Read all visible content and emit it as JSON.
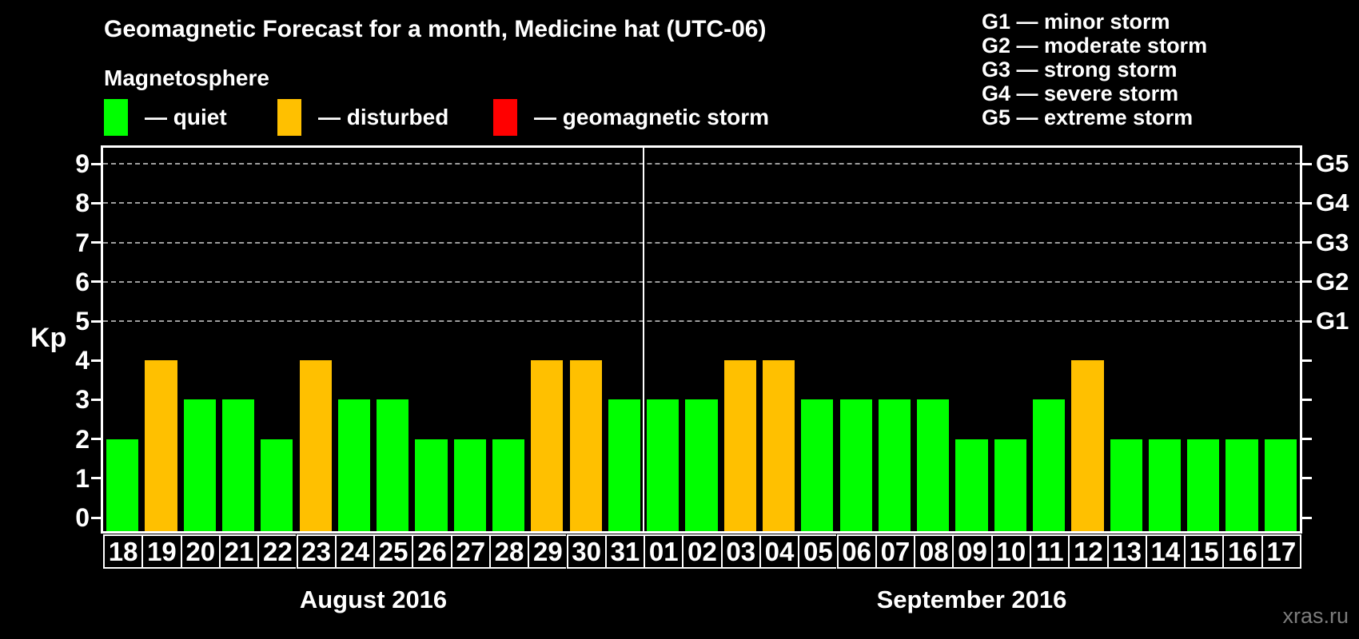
{
  "title": "Geomagnetic Forecast for a month, Medicine hat (UTC-06)",
  "subtitle": "Magnetosphere",
  "legend": {
    "items": [
      {
        "status": "quiet",
        "label": "— quiet",
        "color": "#00FF00"
      },
      {
        "status": "disturbed",
        "label": "— disturbed",
        "color": "#FFC000"
      },
      {
        "status": "storm",
        "label": "— geomagnetic storm",
        "color": "#FF0000"
      }
    ]
  },
  "g_scale_legend": {
    "lines": [
      "G1 — minor storm",
      "G2 — moderate storm",
      "G3 — strong storm",
      "G4 — severe storm",
      "G5 — extreme storm"
    ]
  },
  "watermark": "xras.ru",
  "chart_data": {
    "type": "bar",
    "title": "Geomagnetic Forecast for a month, Medicine hat (UTC-06)",
    "ylabel": "Kp",
    "ylim": [
      0,
      9
    ],
    "y_ticks": [
      0,
      1,
      2,
      3,
      4,
      5,
      6,
      7,
      8,
      9
    ],
    "grid_levels": [
      5,
      6,
      7,
      8,
      9
    ],
    "grid_style": "dashed horizontal gridlines at Kp 5-9",
    "legend_position": "top-left",
    "right_axis_labels": [
      {
        "kp": 5,
        "text": "G1"
      },
      {
        "kp": 6,
        "text": "G2"
      },
      {
        "kp": 7,
        "text": "G3"
      },
      {
        "kp": 8,
        "text": "G4"
      },
      {
        "kp": 9,
        "text": "G5"
      }
    ],
    "status_colors": {
      "quiet": "#00FF00",
      "disturbed": "#FFC000",
      "storm": "#FF0000"
    },
    "months": [
      {
        "label": "August 2016",
        "days": [
          {
            "day": "18",
            "kp": 2,
            "status": "quiet"
          },
          {
            "day": "19",
            "kp": 4,
            "status": "disturbed"
          },
          {
            "day": "20",
            "kp": 3,
            "status": "quiet"
          },
          {
            "day": "21",
            "kp": 3,
            "status": "quiet"
          },
          {
            "day": "22",
            "kp": 2,
            "status": "quiet"
          },
          {
            "day": "23",
            "kp": 4,
            "status": "disturbed"
          },
          {
            "day": "24",
            "kp": 3,
            "status": "quiet"
          },
          {
            "day": "25",
            "kp": 3,
            "status": "quiet"
          },
          {
            "day": "26",
            "kp": 2,
            "status": "quiet"
          },
          {
            "day": "27",
            "kp": 2,
            "status": "quiet"
          },
          {
            "day": "28",
            "kp": 2,
            "status": "quiet"
          },
          {
            "day": "29",
            "kp": 4,
            "status": "disturbed"
          },
          {
            "day": "30",
            "kp": 4,
            "status": "disturbed"
          },
          {
            "day": "31",
            "kp": 3,
            "status": "quiet"
          }
        ]
      },
      {
        "label": "September 2016",
        "days": [
          {
            "day": "01",
            "kp": 3,
            "status": "quiet"
          },
          {
            "day": "02",
            "kp": 3,
            "status": "quiet"
          },
          {
            "day": "03",
            "kp": 4,
            "status": "disturbed"
          },
          {
            "day": "04",
            "kp": 4,
            "status": "disturbed"
          },
          {
            "day": "05",
            "kp": 3,
            "status": "quiet"
          },
          {
            "day": "06",
            "kp": 3,
            "status": "quiet"
          },
          {
            "day": "07",
            "kp": 3,
            "status": "quiet"
          },
          {
            "day": "08",
            "kp": 3,
            "status": "quiet"
          },
          {
            "day": "09",
            "kp": 2,
            "status": "quiet"
          },
          {
            "day": "10",
            "kp": 2,
            "status": "quiet"
          },
          {
            "day": "11",
            "kp": 3,
            "status": "quiet"
          },
          {
            "day": "12",
            "kp": 4,
            "status": "disturbed"
          },
          {
            "day": "13",
            "kp": 2,
            "status": "quiet"
          },
          {
            "day": "14",
            "kp": 2,
            "status": "quiet"
          },
          {
            "day": "15",
            "kp": 2,
            "status": "quiet"
          },
          {
            "day": "16",
            "kp": 2,
            "status": "quiet"
          },
          {
            "day": "17",
            "kp": 2,
            "status": "quiet"
          }
        ]
      }
    ]
  }
}
